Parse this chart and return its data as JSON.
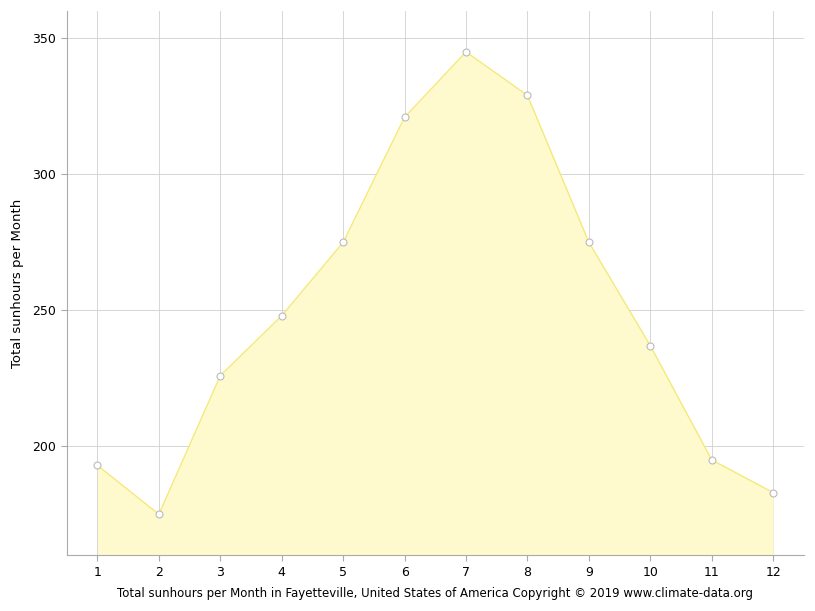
{
  "months": [
    1,
    2,
    3,
    4,
    5,
    6,
    7,
    8,
    9,
    10,
    11,
    12
  ],
  "sunhours": [
    193,
    175,
    226,
    248,
    275,
    321,
    345,
    329,
    275,
    237,
    195,
    183
  ],
  "fill_color": "#FFFACD",
  "fill_edge_color": "#F5E97A",
  "line_color": "#F5E97A",
  "marker_facecolor": "white",
  "marker_edgecolor": "#BBBBBB",
  "xlabel": "Total sunhours per Month in Fayetteville, United States of America Copyright © 2019 www.climate-data.org",
  "ylabel": "Total sunhours per Month",
  "xlim": [
    0.5,
    12.5
  ],
  "ylim": [
    160,
    360
  ],
  "yticks": [
    200,
    250,
    300,
    350
  ],
  "xticks": [
    1,
    2,
    3,
    4,
    5,
    6,
    7,
    8,
    9,
    10,
    11,
    12
  ],
  "grid_color": "#d0d0d0",
  "bg_color": "#ffffff",
  "xlabel_fontsize": 8.5,
  "ylabel_fontsize": 9.5,
  "tick_fontsize": 9,
  "spine_color": "#aaaaaa",
  "marker_size": 25,
  "linewidth": 1.0
}
